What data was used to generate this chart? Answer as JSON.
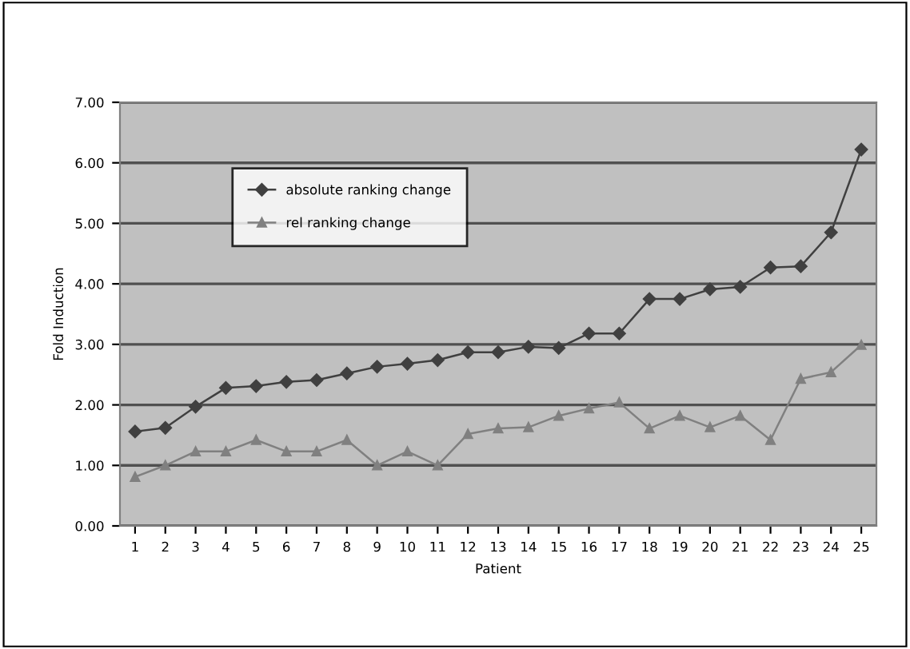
{
  "chart_data": {
    "type": "line",
    "xlabel": "Patient",
    "ylabel": "Fold Induction",
    "categories": [
      "1",
      "2",
      "3",
      "4",
      "5",
      "6",
      "7",
      "8",
      "9",
      "10",
      "11",
      "12",
      "13",
      "14",
      "15",
      "16",
      "17",
      "18",
      "19",
      "20",
      "21",
      "22",
      "23",
      "24",
      "25"
    ],
    "series": [
      {
        "name": "absolute ranking change",
        "color": "#404040",
        "marker": "diamond",
        "values": [
          1.56,
          1.62,
          1.97,
          2.28,
          2.31,
          2.38,
          2.41,
          2.52,
          2.63,
          2.68,
          2.74,
          2.87,
          2.87,
          2.96,
          2.94,
          3.18,
          3.18,
          3.75,
          3.75,
          3.91,
          3.95,
          4.27,
          4.29,
          4.85,
          6.22
        ]
      },
      {
        "name": "rel ranking change",
        "color": "#808080",
        "marker": "triangle",
        "values": [
          0.81,
          1.0,
          1.23,
          1.23,
          1.42,
          1.23,
          1.23,
          1.42,
          1.0,
          1.23,
          1.0,
          1.52,
          1.61,
          1.63,
          1.82,
          1.94,
          2.04,
          1.61,
          1.82,
          1.63,
          1.82,
          1.42,
          2.43,
          2.54,
          2.99
        ]
      }
    ],
    "ylim": [
      0,
      7
    ],
    "yticks": [
      {
        "value": 0,
        "label": "0.00"
      },
      {
        "value": 1,
        "label": "1.00"
      },
      {
        "value": 2,
        "label": "2.00"
      },
      {
        "value": 3,
        "label": "3.00"
      },
      {
        "value": 4,
        "label": "4.00"
      },
      {
        "value": 5,
        "label": "5.00"
      },
      {
        "value": 6,
        "label": "6.00"
      },
      {
        "value": 7,
        "label": "7.00"
      }
    ],
    "grid": "y",
    "legend": "top left",
    "line_style": "solid"
  }
}
